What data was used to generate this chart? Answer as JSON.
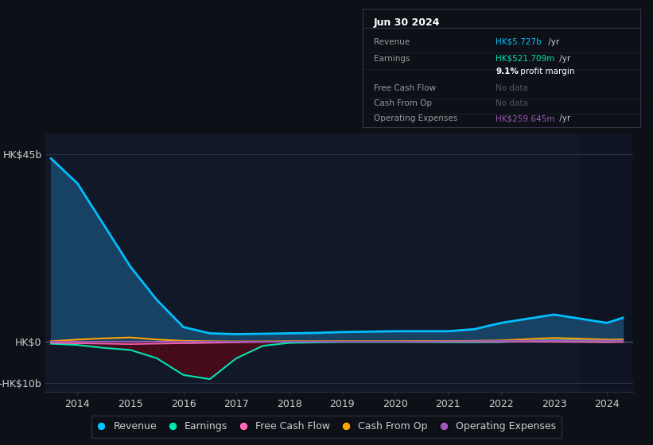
{
  "bg_color": "#0d1117",
  "plot_bg_color": "#111827",
  "grid_color": "#2a3245",
  "text_color": "#cccccc",
  "years": [
    2013.5,
    2014.0,
    2014.5,
    2015.0,
    2015.5,
    2016.0,
    2016.5,
    2017.0,
    2017.5,
    2018.0,
    2018.5,
    2019.0,
    2019.5,
    2020.0,
    2020.5,
    2021.0,
    2021.5,
    2022.0,
    2022.5,
    2023.0,
    2023.5,
    2024.0,
    2024.3
  ],
  "revenue": [
    44,
    38,
    28,
    18,
    10,
    3.5,
    2.0,
    1.8,
    1.9,
    2.0,
    2.1,
    2.3,
    2.4,
    2.5,
    2.5,
    2.5,
    3.0,
    4.5,
    5.5,
    6.5,
    5.5,
    4.5,
    5.727
  ],
  "earnings": [
    -0.5,
    -0.8,
    -1.5,
    -2.0,
    -4.0,
    -8.0,
    -9.0,
    -4.0,
    -1.0,
    -0.3,
    -0.2,
    -0.1,
    -0.1,
    -0.1,
    -0.1,
    -0.15,
    -0.15,
    -0.1,
    0.2,
    0.4,
    0.3,
    0.3,
    0.5217
  ],
  "free_cash_flow": [
    -0.3,
    -0.4,
    -0.5,
    -0.6,
    -0.5,
    -0.4,
    -0.3,
    -0.2,
    -0.1,
    -0.05,
    -0.05,
    -0.03,
    -0.02,
    -0.02,
    -0.02,
    -0.02,
    -0.02,
    -0.02,
    -0.02,
    -0.05,
    -0.1,
    -0.15,
    -0.1
  ],
  "cash_from_op": [
    0.1,
    0.5,
    0.8,
    1.0,
    0.5,
    0.2,
    0.1,
    0.05,
    0.05,
    0.1,
    0.1,
    0.1,
    0.1,
    0.1,
    0.15,
    0.15,
    0.2,
    0.3,
    0.6,
    0.9,
    0.7,
    0.5,
    0.5
  ],
  "operating_expenses": [
    0.0,
    0.0,
    0.0,
    0.0,
    0.0,
    0.0,
    0.0,
    0.0,
    0.0,
    0.0,
    0.0,
    0.0,
    0.0,
    0.0,
    0.05,
    0.08,
    0.12,
    0.18,
    0.22,
    0.28,
    0.26,
    0.24,
    0.2596
  ],
  "revenue_color": "#00bfff",
  "revenue_fill_color": "#1a4a6e",
  "earnings_color": "#00e5b0",
  "earnings_fill_neg_color": "#4a0a1a",
  "free_cash_flow_color": "#ff69b4",
  "cash_from_op_color": "#ffa500",
  "operating_expenses_color": "#9b59b6",
  "ylim": [
    -12,
    50
  ],
  "xlim": [
    2013.4,
    2024.5
  ],
  "yticks": [
    -10,
    0,
    45
  ],
  "ytick_labels": [
    "-HK$10b",
    "HK$0",
    "HK$45b"
  ],
  "xtick_labels": [
    "2014",
    "2015",
    "2016",
    "2017",
    "2018",
    "2019",
    "2020",
    "2021",
    "2022",
    "2023",
    "2024"
  ],
  "xtick_positions": [
    2014,
    2015,
    2016,
    2017,
    2018,
    2019,
    2020,
    2021,
    2022,
    2023,
    2024
  ],
  "legend_items": [
    "Revenue",
    "Earnings",
    "Free Cash Flow",
    "Cash From Op",
    "Operating Expenses"
  ],
  "legend_colors": [
    "#00bfff",
    "#00e5b0",
    "#ff69b4",
    "#ffa500",
    "#9b59b6"
  ],
  "shaded_right_start": 2023.5,
  "info_date": "Jun 30 2024",
  "info_rows": [
    {
      "label": "Revenue",
      "val1": "HK$5.727b",
      "val1_color": "#00bfff",
      "val2": " /yr",
      "val2_color": "#cccccc"
    },
    {
      "label": "Earnings",
      "val1": "HK$521.709m",
      "val1_color": "#00e5b0",
      "val2": " /yr",
      "val2_color": "#cccccc"
    },
    {
      "label": "",
      "val1": "9.1%",
      "val1_color": "#ffffff",
      "val2": " profit margin",
      "val2_color": "#ffffff",
      "val1_bold": true
    },
    {
      "label": "Free Cash Flow",
      "val1": "No data",
      "val1_color": "#555566",
      "val2": "",
      "val2_color": "#cccccc"
    },
    {
      "label": "Cash From Op",
      "val1": "No data",
      "val1_color": "#555566",
      "val2": "",
      "val2_color": "#cccccc"
    },
    {
      "label": "Operating Expenses",
      "val1": "HK$259.645m",
      "val1_color": "#9b59b6",
      "val2": " /yr",
      "val2_color": "#cccccc"
    }
  ]
}
